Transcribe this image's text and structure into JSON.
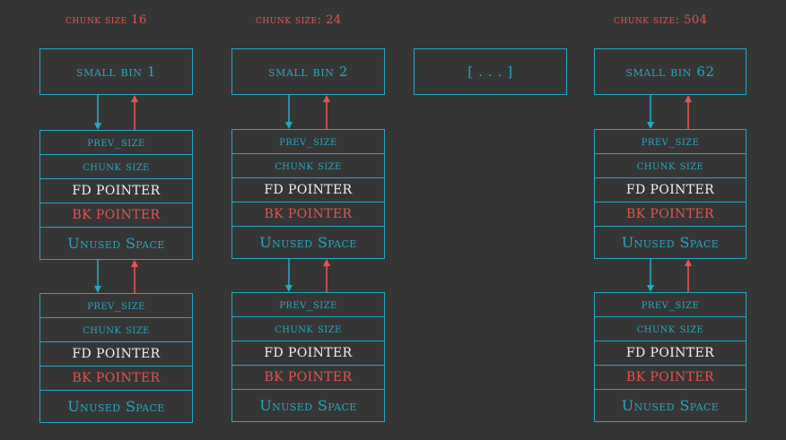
{
  "colors": {
    "background": "#353535",
    "teal": "#23a9c4",
    "red": "#e8544f",
    "white": "#f2f2f2"
  },
  "columns": [
    {
      "heading": "CHUNK SIZE 16",
      "bin": "SMALL BIN 1",
      "chunks": [
        {
          "prev_size": "PREV_SIZE",
          "chunk_size": "CHUNK SIZE",
          "fd": "FD POINTER",
          "bk": "BK POINTER",
          "unused": "Unused Space"
        },
        {
          "prev_size": "PREV_SIZE",
          "chunk_size": "CHUNK SIZE",
          "fd": "FD POINTER",
          "bk": "BK POINTER",
          "unused": "Unused Space"
        }
      ]
    },
    {
      "heading": "CHUNK SIZE: 24",
      "bin": "SMALL BIN 2",
      "chunks": [
        {
          "prev_size": "PREV_SIZE",
          "chunk_size": "CHUNK SIZE",
          "fd": "FD POINTER",
          "bk": "BK POINTER",
          "unused": "Unused Space"
        },
        {
          "prev_size": "PREV_SIZE",
          "chunk_size": "CHUNK SIZE",
          "fd": "FD POINTER",
          "bk": "BK POINTER",
          "unused": "Unused Space"
        }
      ]
    },
    {
      "heading": "",
      "bin": "[ . . . ]",
      "chunks": []
    },
    {
      "heading": "CHUNK SIZE: 504",
      "bin": "SMALL BIN 62",
      "chunks": [
        {
          "prev_size": "PREV_SIZE",
          "chunk_size": "CHUNK SIZE",
          "fd": "FD POINTER",
          "bk": "BK POINTER",
          "unused": "Unused Space"
        },
        {
          "prev_size": "PREV_SIZE",
          "chunk_size": "CHUNK SIZE",
          "fd": "FD POINTER",
          "bk": "BK POINTER",
          "unused": "Unused Space"
        }
      ]
    }
  ]
}
